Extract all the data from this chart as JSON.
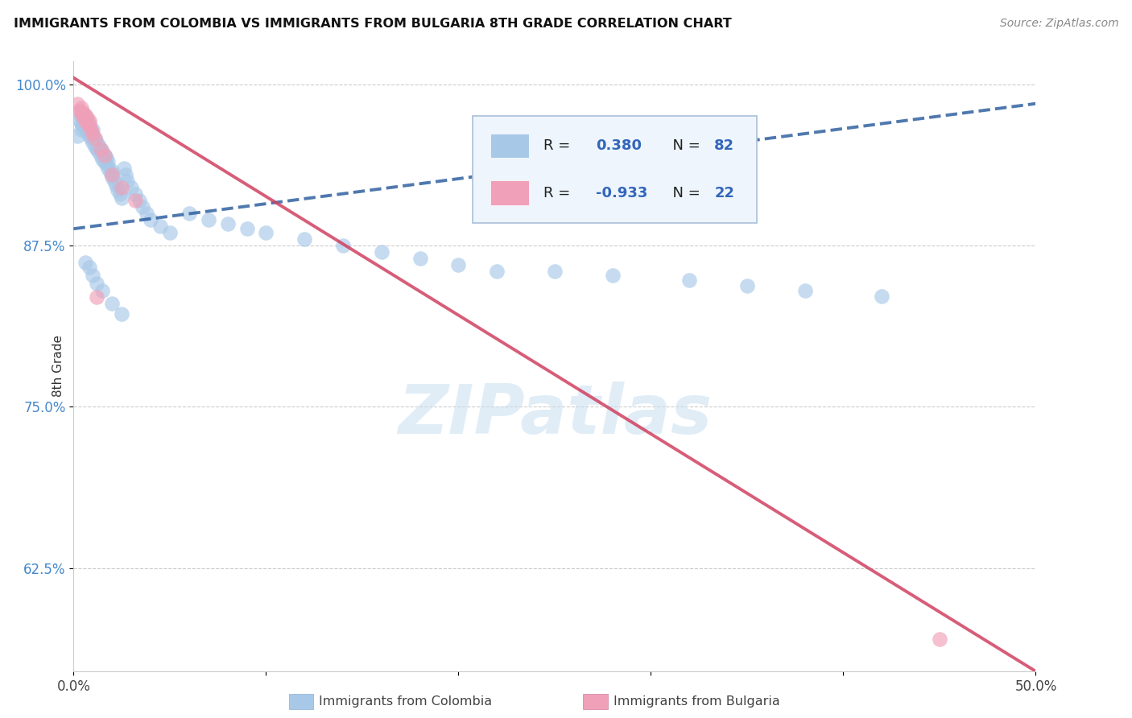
{
  "title": "IMMIGRANTS FROM COLOMBIA VS IMMIGRANTS FROM BULGARIA 8TH GRADE CORRELATION CHART",
  "source": "Source: ZipAtlas.com",
  "xlabel_colombia": "Immigrants from Colombia",
  "xlabel_bulgaria": "Immigrants from Bulgaria",
  "ylabel": "8th Grade",
  "colombia_R": 0.38,
  "colombia_N": 82,
  "bulgaria_R": -0.933,
  "bulgaria_N": 22,
  "colombia_color": "#a8c8e8",
  "colombia_line_color": "#3060a0",
  "bulgaria_color": "#f0a0b8",
  "bulgaria_line_color": "#d04060",
  "watermark_text": "ZIPatlas",
  "xlim": [
    0.0,
    0.5
  ],
  "ylim": [
    0.545,
    1.018
  ],
  "xtick_vals": [
    0.0,
    0.1,
    0.2,
    0.3,
    0.4,
    0.5
  ],
  "xtick_labels": [
    "0.0%",
    "",
    "",
    "",
    "",
    "50.0%"
  ],
  "ytick_vals": [
    0.625,
    0.75,
    0.875,
    1.0
  ],
  "ytick_labels": [
    "62.5%",
    "75.0%",
    "87.5%",
    "100.0%"
  ],
  "colombia_line_x": [
    0.0,
    0.5
  ],
  "colombia_line_y": [
    0.888,
    0.985
  ],
  "bulgaria_line_x": [
    0.0,
    0.5
  ],
  "bulgaria_line_y": [
    1.005,
    0.545
  ],
  "colombia_x": [
    0.002,
    0.003,
    0.003,
    0.004,
    0.004,
    0.004,
    0.005,
    0.005,
    0.005,
    0.006,
    0.006,
    0.006,
    0.007,
    0.007,
    0.007,
    0.008,
    0.008,
    0.008,
    0.009,
    0.009,
    0.01,
    0.01,
    0.01,
    0.011,
    0.011,
    0.012,
    0.012,
    0.013,
    0.013,
    0.014,
    0.014,
    0.015,
    0.015,
    0.016,
    0.016,
    0.017,
    0.017,
    0.018,
    0.018,
    0.019,
    0.02,
    0.02,
    0.021,
    0.022,
    0.023,
    0.024,
    0.025,
    0.026,
    0.027,
    0.028,
    0.03,
    0.032,
    0.034,
    0.036,
    0.038,
    0.04,
    0.045,
    0.05,
    0.06,
    0.07,
    0.08,
    0.09,
    0.1,
    0.12,
    0.14,
    0.16,
    0.18,
    0.2,
    0.22,
    0.25,
    0.28,
    0.32,
    0.35,
    0.38,
    0.42,
    0.006,
    0.008,
    0.01,
    0.012,
    0.015,
    0.02,
    0.025
  ],
  "colombia_y": [
    0.96,
    0.972,
    0.978,
    0.965,
    0.97,
    0.975,
    0.968,
    0.972,
    0.976,
    0.965,
    0.97,
    0.975,
    0.963,
    0.967,
    0.971,
    0.96,
    0.965,
    0.97,
    0.958,
    0.963,
    0.955,
    0.96,
    0.965,
    0.952,
    0.958,
    0.95,
    0.955,
    0.948,
    0.953,
    0.945,
    0.95,
    0.942,
    0.948,
    0.94,
    0.945,
    0.938,
    0.943,
    0.935,
    0.94,
    0.932,
    0.928,
    0.933,
    0.925,
    0.922,
    0.918,
    0.915,
    0.912,
    0.935,
    0.93,
    0.925,
    0.92,
    0.915,
    0.91,
    0.905,
    0.9,
    0.895,
    0.89,
    0.885,
    0.9,
    0.895,
    0.892,
    0.888,
    0.885,
    0.88,
    0.875,
    0.87,
    0.865,
    0.86,
    0.855,
    0.855,
    0.852,
    0.848,
    0.844,
    0.84,
    0.836,
    0.862,
    0.858,
    0.852,
    0.846,
    0.84,
    0.83,
    0.822
  ],
  "bulgaria_x": [
    0.002,
    0.003,
    0.004,
    0.004,
    0.005,
    0.005,
    0.006,
    0.006,
    0.007,
    0.007,
    0.008,
    0.008,
    0.009,
    0.01,
    0.011,
    0.012,
    0.014,
    0.016,
    0.02,
    0.025,
    0.032,
    0.45
  ],
  "bulgaria_y": [
    0.985,
    0.98,
    0.978,
    0.982,
    0.975,
    0.978,
    0.972,
    0.976,
    0.97,
    0.974,
    0.968,
    0.972,
    0.965,
    0.962,
    0.958,
    0.835,
    0.95,
    0.945,
    0.93,
    0.92,
    0.91,
    0.57
  ]
}
